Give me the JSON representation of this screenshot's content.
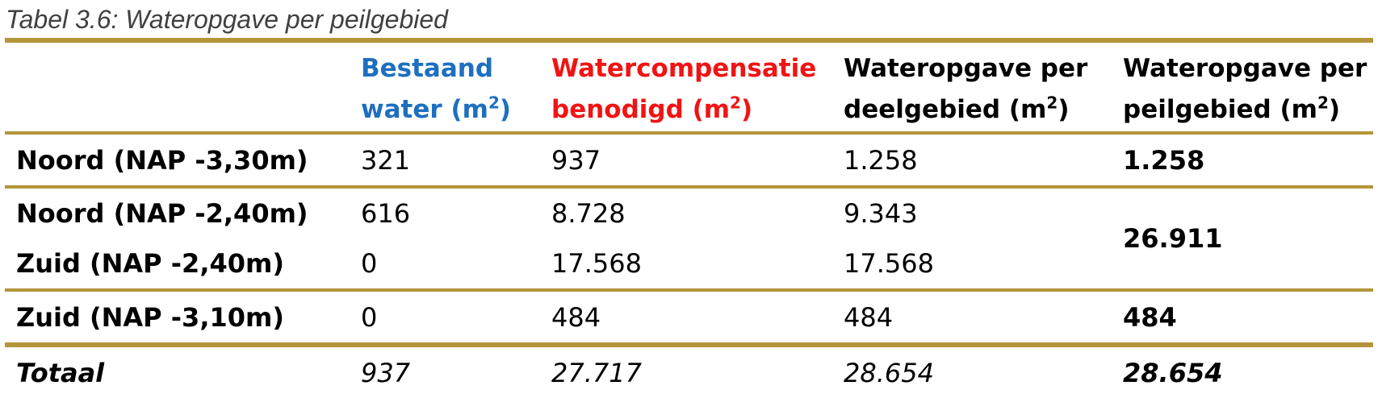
{
  "caption": "Tabel 3.6: Wateropgave per peilgebied",
  "header": {
    "col2_l1": "Bestaand",
    "col2_l2": "water (m",
    "col3_l1": "Watercompensatie",
    "col3_l2": "benodigd (m",
    "col4_l1": "Wateropgave per",
    "col4_l2": "deelgebied (m",
    "col5_l1": "Wateropgave per",
    "col5_l2": "peilgebied (m",
    "sup": "2",
    "close": ")"
  },
  "rows": [
    {
      "name": "Noord (NAP -3,30m)",
      "bestaand": "321",
      "comp": "937",
      "deel": "1.258",
      "peil": "1.258"
    },
    {
      "name": "Noord (NAP -2,40m)",
      "bestaand": "616",
      "comp": "8.728",
      "deel": "9.343",
      "peil": "26.911"
    },
    {
      "name": "Zuid (NAP -2,40m)",
      "bestaand": "0",
      "comp": "17.568",
      "deel": "17.568"
    },
    {
      "name": "Zuid (NAP -3,10m)",
      "bestaand": "0",
      "comp": "484",
      "deel": "484",
      "peil": "484"
    }
  ],
  "total": {
    "name": "Totaal",
    "bestaand": "937",
    "comp": "27.717",
    "deel": "28.654",
    "peil": "28.654"
  },
  "colors": {
    "rule": "#b4953a",
    "blue_header": "#1e6fc0",
    "red_header": "#f01414"
  }
}
